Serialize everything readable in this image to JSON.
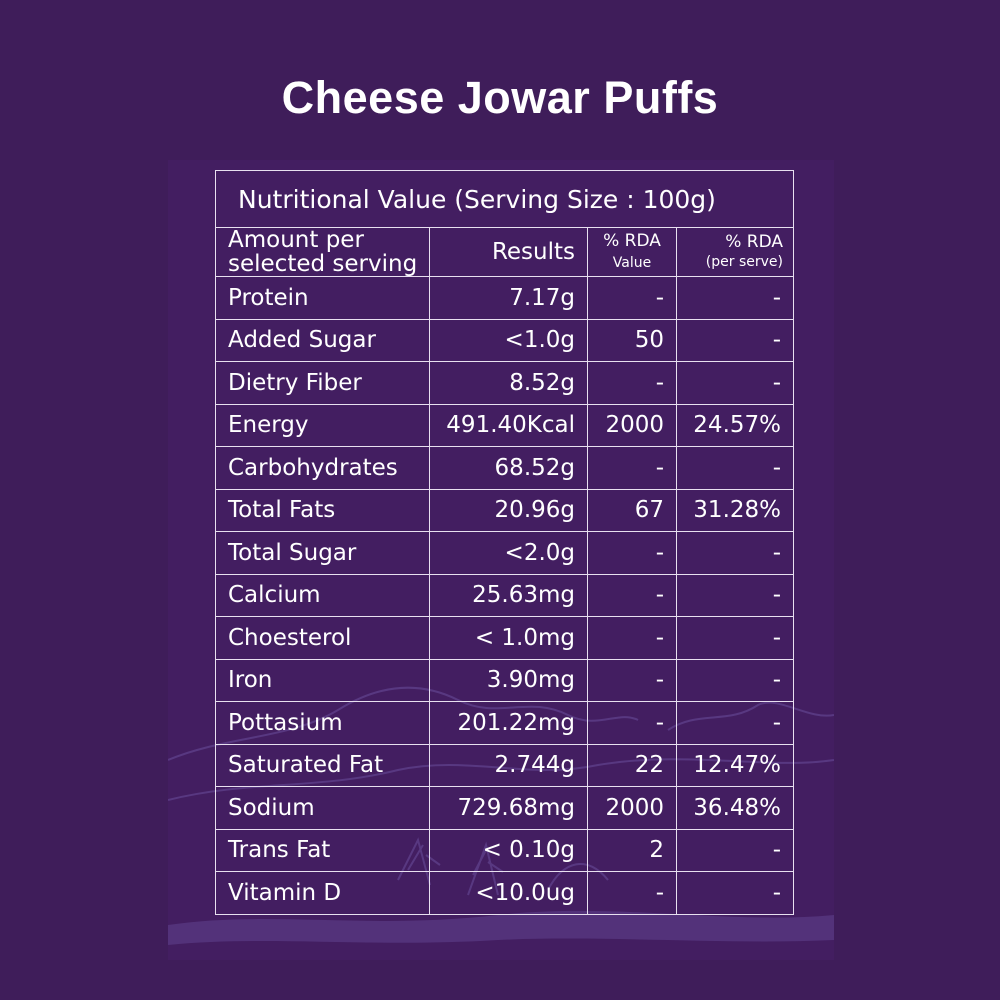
{
  "title": "Cheese Jowar Puffs",
  "table": {
    "caption": "Nutritional Value (Serving Size : 100g)",
    "headers": {
      "amount_line1": "Amount per",
      "amount_line2": "selected serving",
      "results": "Results",
      "rda_line1": "% RDA",
      "rda_line2": "Value",
      "rda_serve_line1": "% RDA",
      "rda_serve_line2": "(per serve)"
    },
    "rows": [
      {
        "name": "Protein",
        "result": "7.17g",
        "rda": "-",
        "serve": "-"
      },
      {
        "name": "Added Sugar",
        "result": "<1.0g",
        "rda": "50",
        "serve": "-"
      },
      {
        "name": "Dietry Fiber",
        "result": "8.52g",
        "rda": "-",
        "serve": "-"
      },
      {
        "name": "Energy",
        "result": "491.40Kcal",
        "rda": "2000",
        "serve": "24.57%"
      },
      {
        "name": "Carbohydrates",
        "result": "68.52g",
        "rda": "-",
        "serve": "-"
      },
      {
        "name": "Total Fats",
        "result": "20.96g",
        "rda": "67",
        "serve": "31.28%"
      },
      {
        "name": "Total Sugar",
        "result": "<2.0g",
        "rda": "-",
        "serve": "-"
      },
      {
        "name": "Calcium",
        "result": "25.63mg",
        "rda": "-",
        "serve": "-"
      },
      {
        "name": "Choesterol",
        "result": "< 1.0mg",
        "rda": "-",
        "serve": "-"
      },
      {
        "name": "Iron",
        "result": "3.90mg",
        "rda": "-",
        "serve": "-"
      },
      {
        "name": "Pottasium",
        "result": "201.22mg",
        "rda": "-",
        "serve": "-"
      },
      {
        "name": "Saturated Fat",
        "result": "2.744g",
        "rda": "22",
        "serve": "12.47%"
      },
      {
        "name": "Sodium",
        "result": "729.68mg",
        "rda": "2000",
        "serve": "36.48%"
      },
      {
        "name": "Trans Fat",
        "result": "< 0.10g",
        "rda": "2",
        "serve": "-"
      },
      {
        "name": "Vitamin D",
        "result": "<10.0ug",
        "rda": "-",
        "serve": "-"
      }
    ]
  },
  "colors": {
    "background": "#3f1d5a",
    "panel": "#431e61",
    "text": "#ffffff",
    "border": "#e8e0f0",
    "decoration": "#5a3a85"
  }
}
